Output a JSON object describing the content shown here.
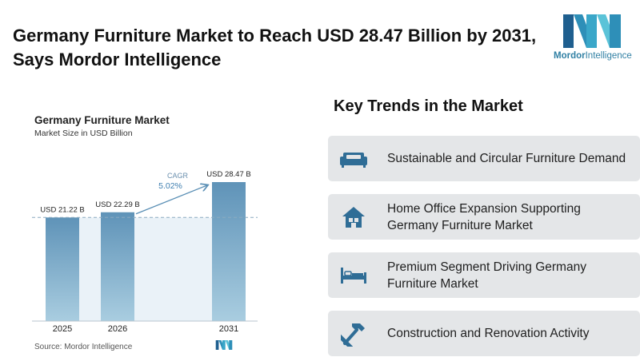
{
  "headline": "Germany Furniture Market to Reach USD 28.47 Billion by 2031, Says Mordor Intelligence",
  "logo": {
    "brand": "Mordor",
    "suffix": "Intelligence",
    "color": "#2f7fa3"
  },
  "chart_data": {
    "type": "bar",
    "title": "Germany Furniture Market",
    "subtitle": "Market Size in USD Billion",
    "categories": [
      "2025",
      "2026",
      "2031"
    ],
    "values": [
      21.22,
      22.29,
      28.47
    ],
    "data_labels": [
      "USD 21.22 B",
      "USD 22.29 B",
      "USD 28.47 B"
    ],
    "cagr_label": "CAGR",
    "cagr_value": "5.02%",
    "bar_color_top": "#5f93b8",
    "bar_color_bottom": "#a9cde0",
    "gap_fill": "#eaf2f8",
    "baseline_dashed": true
  },
  "source": "Source: Mordor Intelligence",
  "trends": {
    "heading": "Key Trends in the Market",
    "items": [
      {
        "label": "Sustainable and Circular Furniture Demand",
        "icon": "sofa-icon"
      },
      {
        "label": "Home Office Expansion Supporting Germany Furniture Market",
        "icon": "house-icon"
      },
      {
        "label": "Premium Segment Driving Germany Furniture Market",
        "icon": "bed-icon"
      },
      {
        "label": "Construction and Renovation Activity",
        "icon": "hammer-icon"
      }
    ]
  }
}
